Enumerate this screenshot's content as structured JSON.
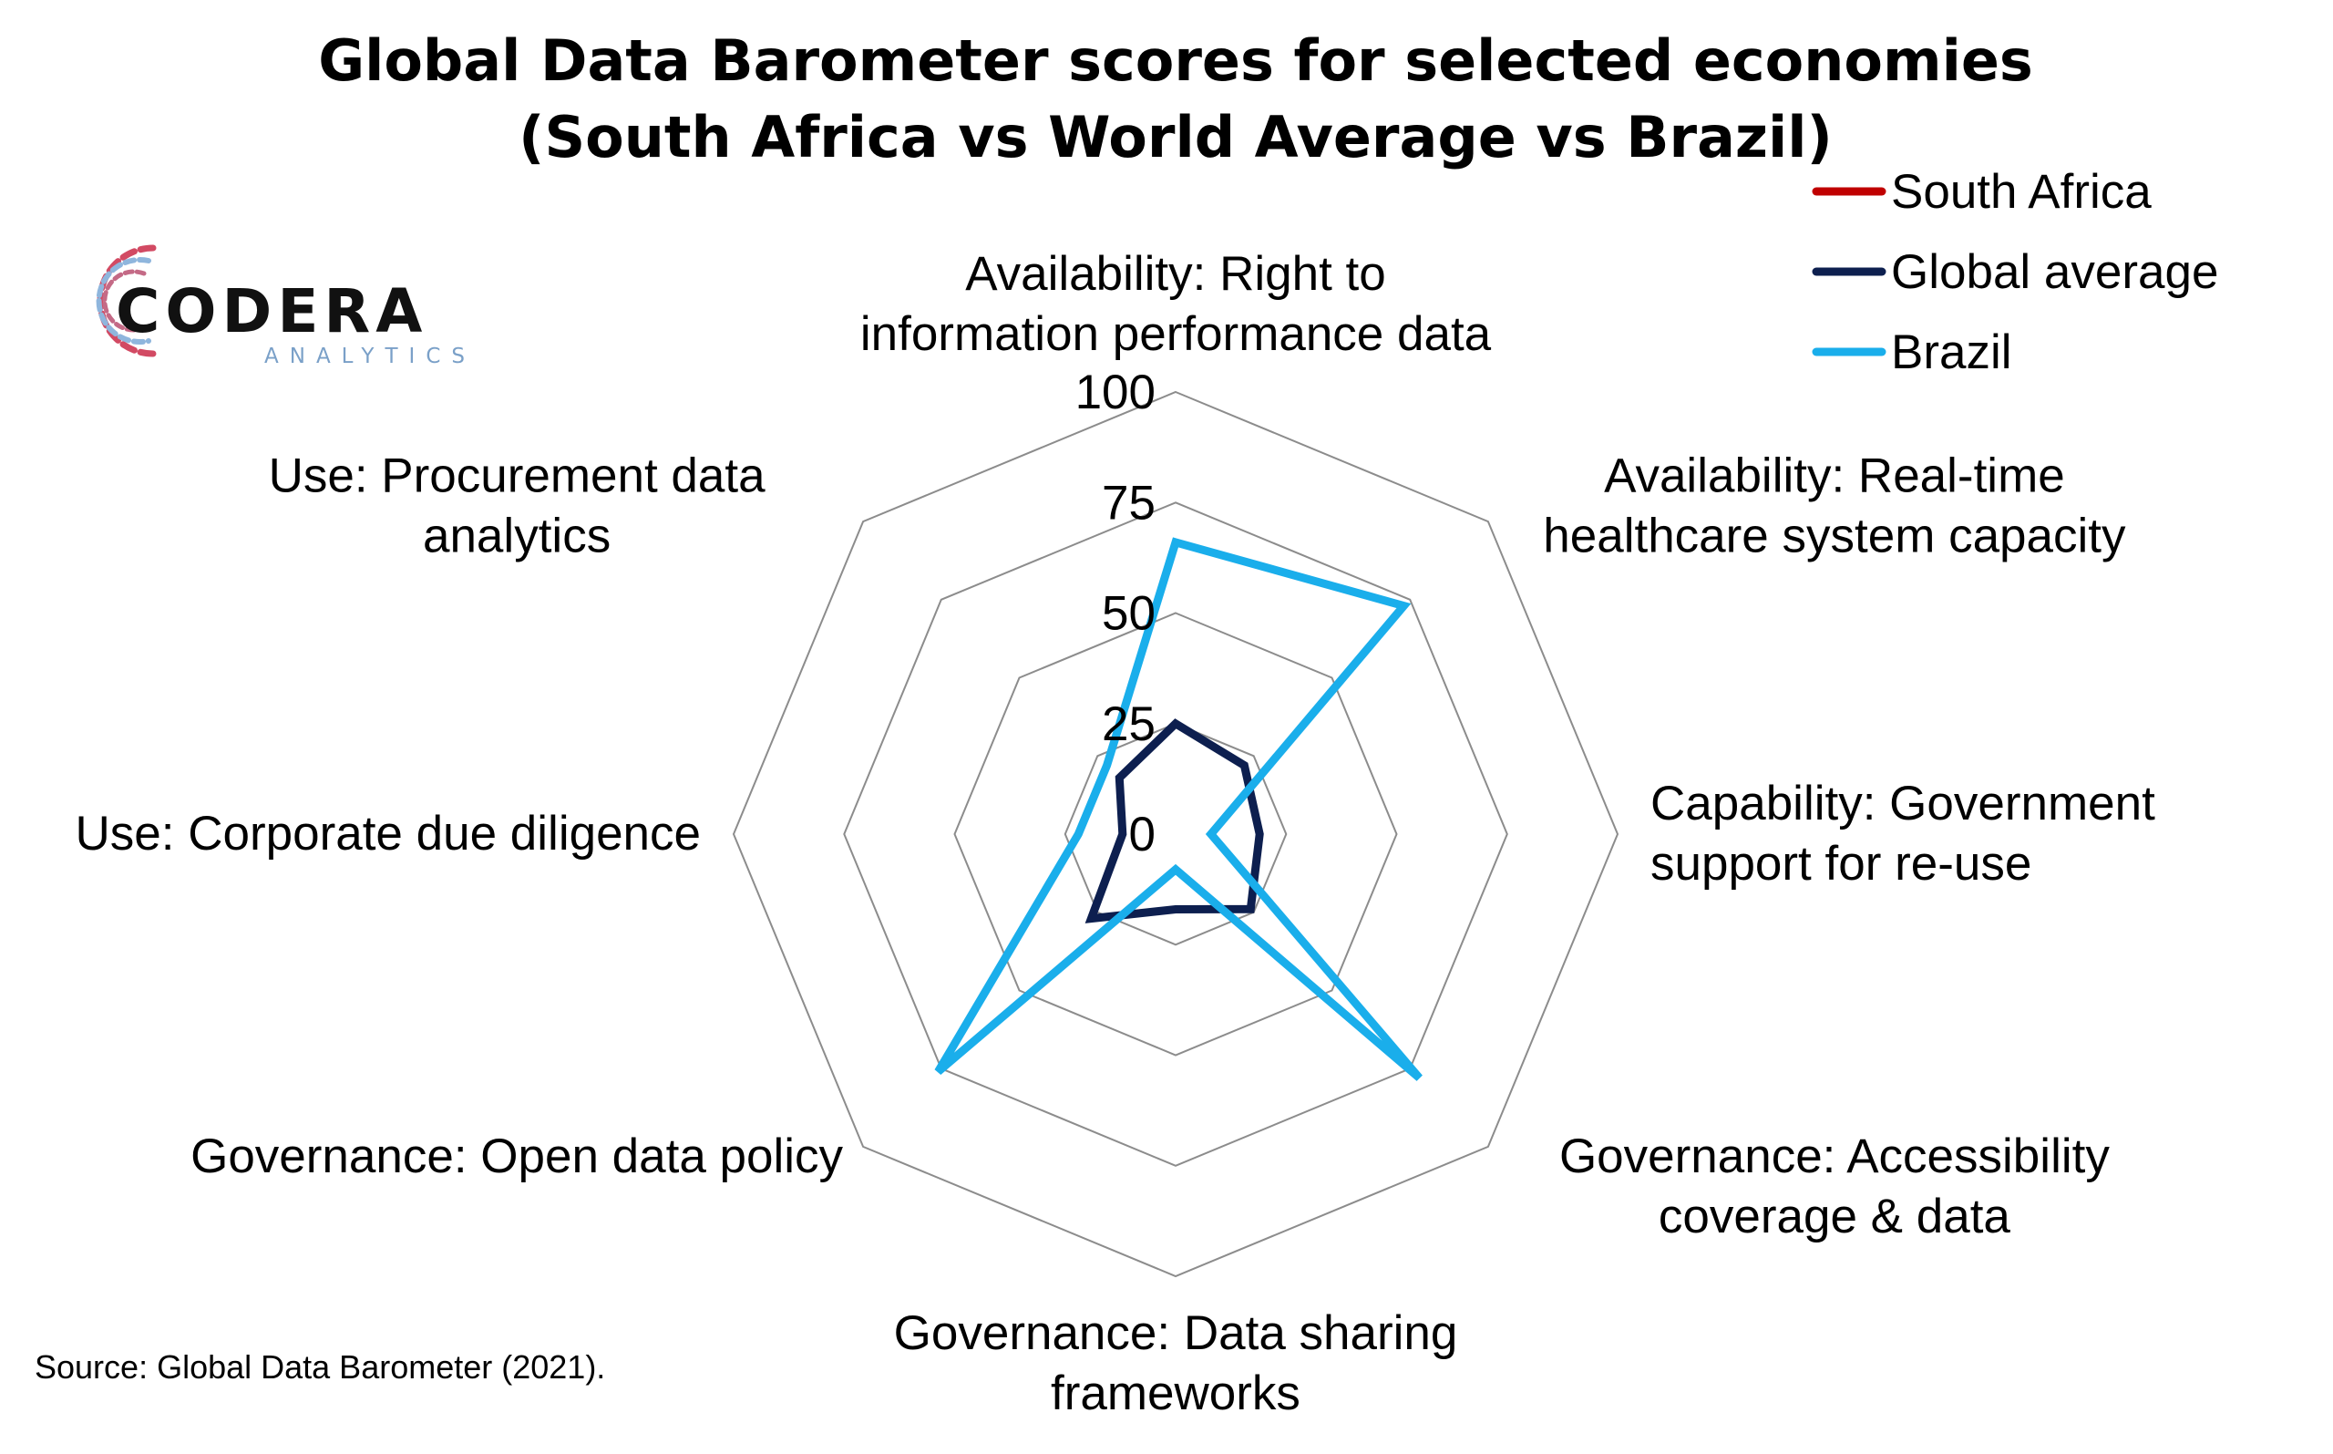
{
  "title_lines": [
    "Global Data Barometer scores for selected economies",
    "(South Africa vs World Average vs Brazil)"
  ],
  "source": "Source: Global Data Barometer (2021).",
  "logo": {
    "name": "CODERA",
    "subtitle": "ANALYTICS"
  },
  "chart_data": {
    "type": "radar",
    "axes": [
      {
        "label_lines": [
          "Availability: Right to",
          "information performance data"
        ]
      },
      {
        "label_lines": [
          "Availability: Real-time",
          "healthcare system capacity"
        ]
      },
      {
        "label_lines": [
          "Capability: Government",
          "support for re-use"
        ]
      },
      {
        "label_lines": [
          "Governance: Accessibility",
          "coverage & data"
        ]
      },
      {
        "label_lines": [
          "Governance: Data sharing",
          "frameworks"
        ]
      },
      {
        "label_lines": [
          "Governance: Open data policy"
        ]
      },
      {
        "label_lines": [
          "Use: Corporate due diligence"
        ]
      },
      {
        "label_lines": [
          "Use: Procurement data",
          "analytics"
        ]
      }
    ],
    "scale": {
      "min": 0,
      "max": 100,
      "ticks": [
        0,
        25,
        50,
        75,
        100
      ]
    },
    "series": [
      {
        "name": "South Africa",
        "color": "#c00000",
        "values": [
          null,
          null,
          null,
          null,
          null,
          null,
          null,
          null
        ]
      },
      {
        "name": "Global average",
        "color": "#0d1f4f",
        "values": [
          25,
          22,
          19,
          24,
          17,
          27,
          12,
          18
        ]
      },
      {
        "name": "Brazil",
        "color": "#1aaeeb",
        "values": [
          66,
          73,
          8,
          78,
          8,
          76,
          22,
          22
        ]
      }
    ],
    "legend_position": "top-right",
    "grid": true
  }
}
